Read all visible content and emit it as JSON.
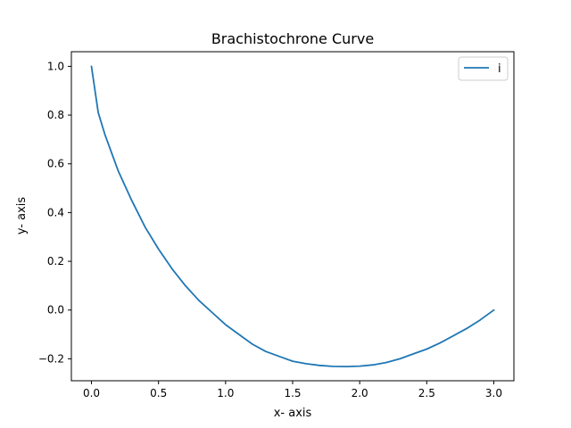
{
  "chart_data": {
    "type": "line",
    "title": "Brachistochrone Curve",
    "xlabel": "x- axis",
    "ylabel": "y- axis",
    "xlim": [
      -0.15,
      3.15
    ],
    "ylim": [
      -0.29,
      1.06
    ],
    "xticks": [
      0.0,
      0.5,
      1.0,
      1.5,
      2.0,
      2.5,
      3.0
    ],
    "xtick_labels": [
      "0.0",
      "0.5",
      "1.0",
      "1.5",
      "2.0",
      "2.5",
      "3.0"
    ],
    "yticks": [
      -0.2,
      0.0,
      0.2,
      0.4,
      0.6,
      0.8,
      1.0
    ],
    "ytick_labels": [
      "−0.2",
      "0.0",
      "0.2",
      "0.4",
      "0.6",
      "0.8",
      "1.0"
    ],
    "grid": false,
    "legend_position": "top-right",
    "series": [
      {
        "name": "i",
        "color": "#1f77b4",
        "x": [
          0.0,
          0.05,
          0.1,
          0.2,
          0.3,
          0.4,
          0.5,
          0.6,
          0.7,
          0.8,
          0.9,
          1.0,
          1.1,
          1.2,
          1.3,
          1.4,
          1.5,
          1.6,
          1.7,
          1.8,
          1.9,
          2.0,
          2.1,
          2.2,
          2.3,
          2.4,
          2.5,
          2.6,
          2.7,
          2.8,
          2.9,
          3.0
        ],
        "y": [
          1.0,
          0.81,
          0.72,
          0.57,
          0.45,
          0.34,
          0.25,
          0.17,
          0.1,
          0.04,
          -0.01,
          -0.06,
          -0.1,
          -0.14,
          -0.17,
          -0.19,
          -0.21,
          -0.22,
          -0.227,
          -0.231,
          -0.232,
          -0.23,
          -0.225,
          -0.215,
          -0.2,
          -0.18,
          -0.16,
          -0.135,
          -0.105,
          -0.075,
          -0.04,
          0.0
        ]
      }
    ]
  }
}
